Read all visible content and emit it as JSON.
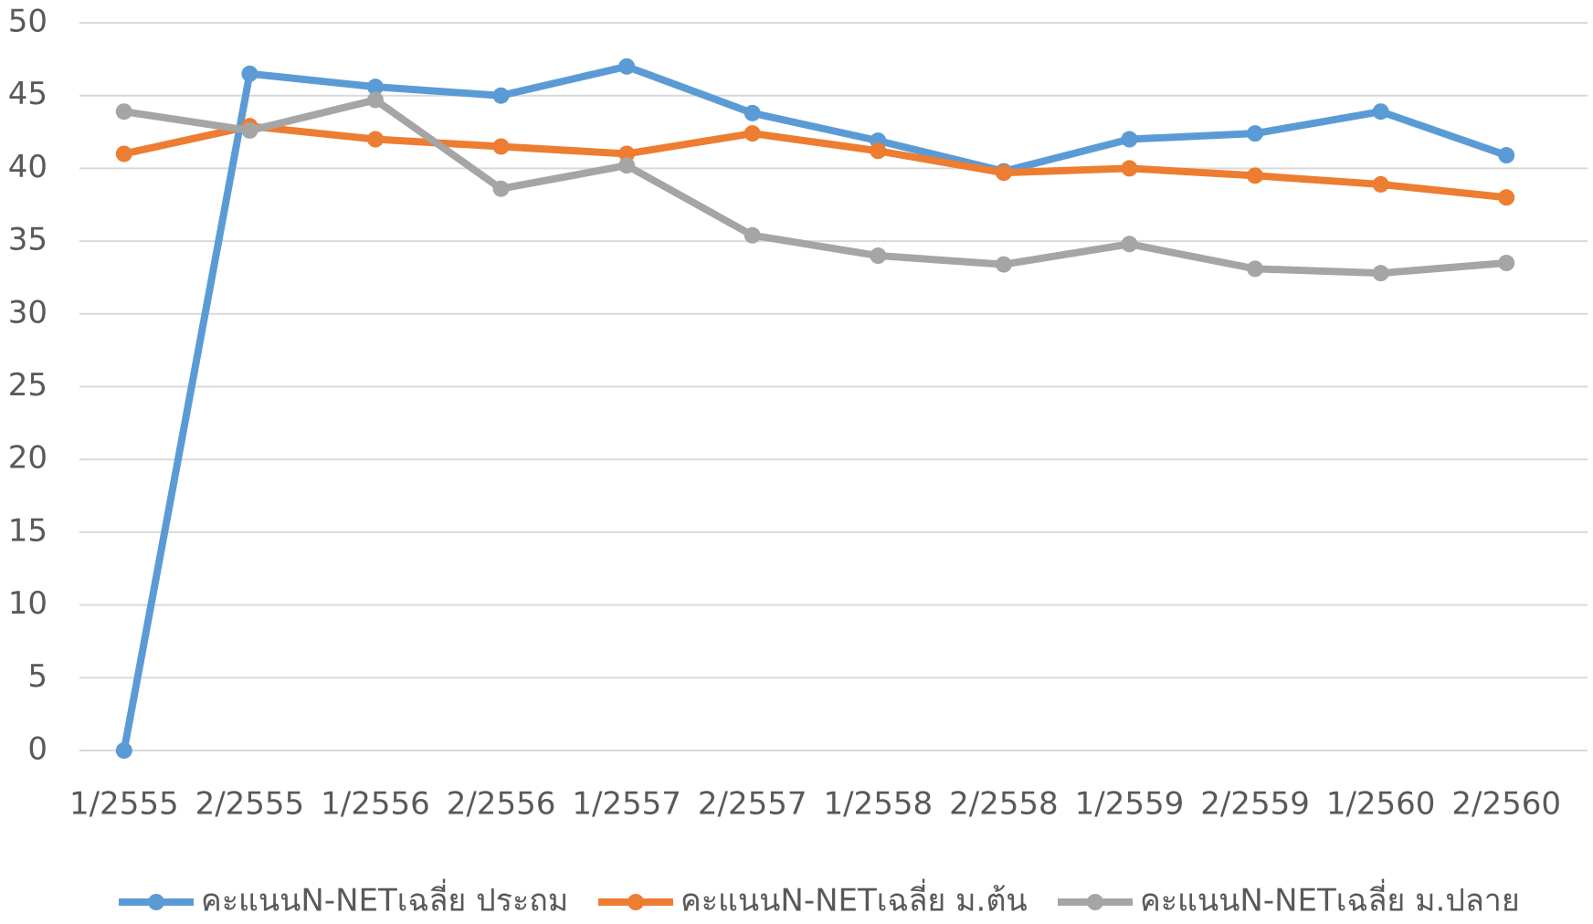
{
  "chart_data": {
    "type": "line",
    "categories": [
      "1/2555",
      "2/2555",
      "1/2556",
      "2/2556",
      "1/2557",
      "2/2557",
      "1/2558",
      "2/2558",
      "1/2559",
      "2/2559",
      "1/2560",
      "2/2560"
    ],
    "series": [
      {
        "name": "คะแนนN-NETเฉลี่ย ประถม",
        "color": "#5b9bd5",
        "values": [
          0,
          46.5,
          45.6,
          45,
          47,
          43.8,
          41.9,
          39.8,
          42,
          42.4,
          43.9,
          40.9
        ]
      },
      {
        "name": "คะแนนN-NETเฉลี่ย ม.ต้น",
        "color": "#ed7d31",
        "values": [
          41,
          42.9,
          42,
          41.5,
          41,
          42.4,
          41.2,
          39.7,
          40,
          39.5,
          38.9,
          38
        ]
      },
      {
        "name": "คะแนนN-NETเฉลี่ย ม.ปลาย",
        "color": "#a5a5a5",
        "values": [
          43.9,
          42.6,
          44.7,
          38.6,
          40.2,
          35.4,
          34,
          33.4,
          34.8,
          33.1,
          32.8,
          33.5
        ]
      }
    ],
    "ylim": [
      0,
      50
    ],
    "yticks": [
      0,
      5,
      10,
      15,
      20,
      25,
      30,
      35,
      40,
      45,
      50
    ],
    "grid": true,
    "legend": "bottom"
  }
}
